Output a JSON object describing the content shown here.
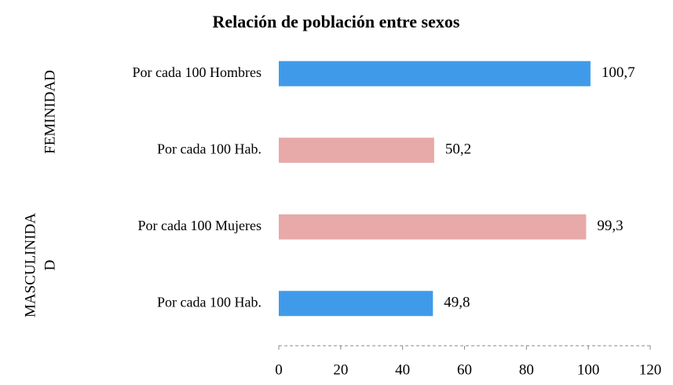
{
  "chart_data": {
    "type": "bar",
    "orientation": "horizontal",
    "title": "Relación de población entre sexos",
    "groups": [
      {
        "lines": [
          "FEMINIDAD"
        ]
      },
      {
        "lines": [
          "MASCULINIDA",
          "D"
        ]
      }
    ],
    "categories": [
      "Por cada 100 Hombres",
      "Por cada 100 Hab.",
      "Por cada 100 Mujeres",
      "Por cada 100 Hab."
    ],
    "values": [
      100.7,
      50.2,
      99.3,
      49.8
    ],
    "value_labels": [
      "100,7",
      "50,2",
      "99,3",
      "49,8"
    ],
    "colors": [
      "#3f9bea",
      "#e8a9a9",
      "#e8a9a9",
      "#3f9bea"
    ],
    "xlim": [
      0,
      120
    ],
    "xticks": [
      0,
      20,
      40,
      60,
      80,
      100,
      120
    ]
  }
}
